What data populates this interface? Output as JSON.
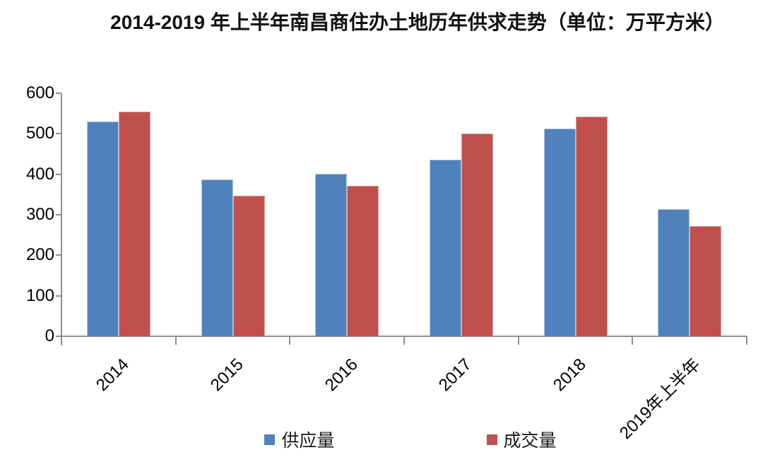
{
  "chart_data": {
    "type": "bar",
    "title": "2014-2019 年上半年南昌商住办土地历年供求走势（单位：万平方米）",
    "categories": [
      "2014",
      "2015",
      "2016",
      "2017",
      "2018",
      "2019年上半年"
    ],
    "series": [
      {
        "name": "供应量",
        "color": "#4F81BD",
        "border_color": "#AFC6E2",
        "values": [
          530,
          387,
          402,
          436,
          513,
          314
        ]
      },
      {
        "name": "成交量",
        "color": "#C0504D",
        "border_color": "#DCA5A3",
        "values": [
          555,
          347,
          372,
          500,
          543,
          272
        ]
      }
    ],
    "xlabel": "",
    "ylabel": "",
    "ylim": [
      0,
      600
    ],
    "y_tick_step": 100,
    "y_tick_labels": [
      "0",
      "100",
      "200",
      "300",
      "400",
      "500",
      "600"
    ],
    "grid": false,
    "legend_position": "bottom",
    "x_label_rotation_deg": -45,
    "axis_color": "#8e8e8e",
    "text_color": "#000000"
  },
  "legend": {
    "items": [
      {
        "label": "供应量",
        "color": "#4F81BD"
      },
      {
        "label": "成交量",
        "color": "#C0504D"
      }
    ]
  }
}
